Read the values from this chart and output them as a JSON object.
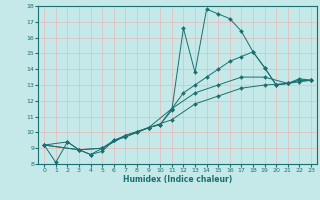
{
  "xlabel": "Humidex (Indice chaleur)",
  "bg_color": "#c5e8e8",
  "grid_color": "#e8b8b8",
  "line_color": "#1a7070",
  "xlim": [
    -0.5,
    23.5
  ],
  "ylim": [
    8,
    18
  ],
  "xticks": [
    0,
    1,
    2,
    3,
    4,
    5,
    6,
    7,
    8,
    9,
    10,
    11,
    12,
    13,
    14,
    15,
    16,
    17,
    18,
    19,
    20,
    21,
    22,
    23
  ],
  "yticks": [
    8,
    9,
    10,
    11,
    12,
    13,
    14,
    15,
    16,
    17,
    18
  ],
  "line1_x": [
    0,
    1,
    2,
    3,
    4,
    5,
    6,
    7,
    8,
    9,
    10,
    11,
    12,
    13,
    14,
    15,
    16,
    17,
    18,
    19,
    20,
    21,
    22,
    23
  ],
  "line1_y": [
    9.2,
    8.1,
    9.4,
    8.9,
    8.6,
    8.8,
    9.5,
    9.7,
    10.0,
    10.3,
    10.5,
    11.4,
    16.6,
    13.8,
    17.8,
    17.5,
    17.2,
    16.4,
    15.1,
    14.1,
    13.0,
    13.1,
    13.4,
    13.3
  ],
  "line2_x": [
    0,
    2,
    3,
    4,
    5,
    6,
    7,
    8,
    9,
    10,
    11,
    12,
    13,
    14,
    15,
    16,
    17,
    18,
    19,
    20,
    21,
    22,
    23
  ],
  "line2_y": [
    9.2,
    9.4,
    8.9,
    8.6,
    9.0,
    9.5,
    9.8,
    10.0,
    10.3,
    10.5,
    11.5,
    12.5,
    13.0,
    13.5,
    14.0,
    14.5,
    14.8,
    15.1,
    14.1,
    13.0,
    13.1,
    13.3,
    13.3
  ],
  "line3_x": [
    0,
    3,
    5,
    7,
    9,
    11,
    13,
    15,
    17,
    19,
    21,
    22,
    23
  ],
  "line3_y": [
    9.2,
    8.9,
    9.0,
    9.8,
    10.3,
    11.5,
    12.5,
    13.0,
    13.5,
    13.5,
    13.1,
    13.3,
    13.3
  ],
  "line4_x": [
    0,
    3,
    5,
    7,
    9,
    11,
    13,
    15,
    17,
    19,
    21,
    22,
    23
  ],
  "line4_y": [
    9.2,
    8.9,
    9.0,
    9.8,
    10.3,
    10.8,
    11.8,
    12.3,
    12.8,
    13.0,
    13.1,
    13.2,
    13.3
  ]
}
